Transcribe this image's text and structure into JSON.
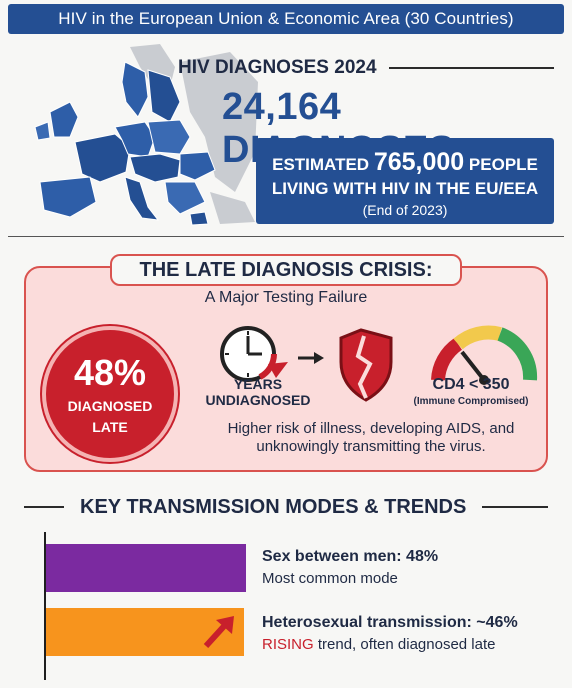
{
  "header": {
    "title": "HIV in the European Union & Economic Area (30 Countries)"
  },
  "diagnoses": {
    "heading": "HIV DIAGNOSES 2024",
    "count": "24,164 DIAGNOSES"
  },
  "estimate": {
    "prefix": "ESTIMATED",
    "number": "765,000",
    "suffix": "PEOPLE",
    "line2": "LIVING WITH HIV IN THE EU/EEA",
    "note": "(End of 2023)"
  },
  "crisis": {
    "title": "THE LATE DIAGNOSIS CRISIS:",
    "subtitle": "A Major Testing Failure",
    "late_percent": "48%",
    "late_label_1": "DIAGNOSED",
    "late_label_2": "LATE",
    "years_label_1": "YEARS",
    "years_label_2": "UNDIAGNOSED",
    "cd4_label": "CD4 < 350",
    "cd4_note": "(Immune Compromised)",
    "risk_line_1": "Higher risk of illness, developing AIDS, and",
    "risk_line_2": "unknowingly transmitting the virus."
  },
  "modes": {
    "title": "KEY TRANSMISSION MODES & TRENDS",
    "items": [
      {
        "heading": "Sex between men: 48%",
        "sub": "Most common mode",
        "color": "#7b2aa0"
      },
      {
        "heading": "Heterosexual transmission: ~46%",
        "sub_highlight": "RISING",
        "sub": " trend, often diagnosed late",
        "color": "#f7941d"
      }
    ]
  },
  "colors": {
    "brand_blue": "#244f93",
    "alert_red": "#c8202c",
    "panel_pink": "#fbdcdb"
  },
  "icons": [
    "europe-map-icon",
    "clock-icon",
    "arrow-right-icon",
    "broken-shield-icon",
    "gauge-icon",
    "trend-up-arrow-icon"
  ]
}
